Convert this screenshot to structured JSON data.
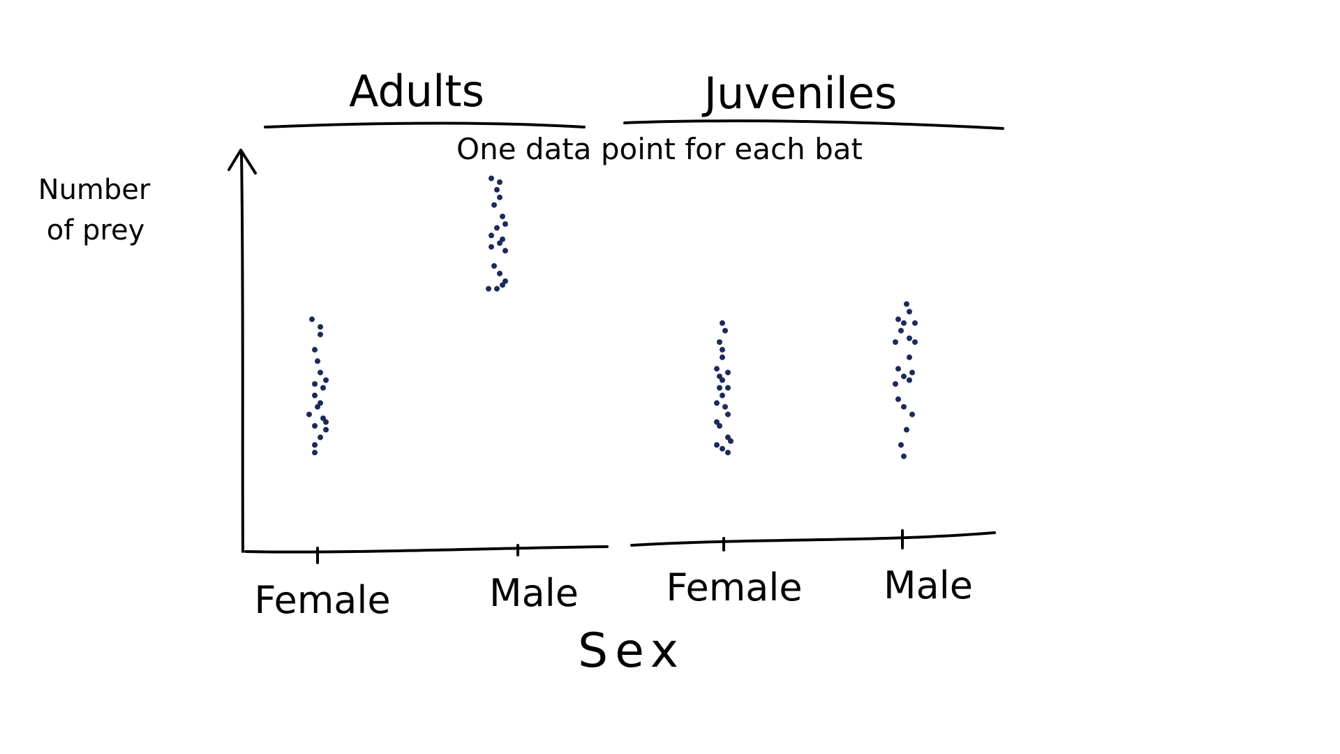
{
  "chart_data": {
    "type": "scatter",
    "style": "hand-drawn strip plot",
    "ylabel_lines": [
      "Number",
      "of prey"
    ],
    "xlabel": "Sex",
    "annotation": "One data point for each bat",
    "panels": [
      {
        "name": "Adults",
        "categories": [
          "Female",
          "Male"
        ],
        "series": [
          {
            "category": "Female",
            "points": [
              [
                -0.02,
                61
              ],
              [
                0.01,
                59
              ],
              [
                0.01,
                57
              ],
              [
                -0.01,
                53
              ],
              [
                0,
                50
              ],
              [
                0.01,
                47
              ],
              [
                0.03,
                45
              ],
              [
                -0.01,
                44
              ],
              [
                0.02,
                43
              ],
              [
                -0.01,
                41
              ],
              [
                0.01,
                39
              ],
              [
                0,
                38
              ],
              [
                -0.03,
                36
              ],
              [
                0.02,
                35
              ],
              [
                0.03,
                34
              ],
              [
                -0.01,
                33
              ],
              [
                0.03,
                32
              ],
              [
                0.01,
                30
              ],
              [
                -0.01,
                28
              ],
              [
                -0.01,
                26
              ]
            ]
          },
          {
            "category": "Male",
            "points": [
              [
                -0.02,
                98
              ],
              [
                0.01,
                97
              ],
              [
                0,
                95
              ],
              [
                0.01,
                93
              ],
              [
                -0.01,
                91
              ],
              [
                0.02,
                88
              ],
              [
                0.03,
                86
              ],
              [
                0,
                85
              ],
              [
                -0.02,
                83
              ],
              [
                0.02,
                82
              ],
              [
                0.01,
                81
              ],
              [
                -0.02,
                80
              ],
              [
                0.03,
                79
              ],
              [
                -0.01,
                75
              ],
              [
                0.01,
                73
              ],
              [
                0.03,
                71
              ],
              [
                0.02,
                70
              ],
              [
                -0.03,
                69
              ],
              [
                0,
                69
              ]
            ]
          }
        ]
      },
      {
        "name": "Juveniles",
        "categories": [
          "Female",
          "Male"
        ],
        "series": [
          {
            "category": "Female",
            "points": [
              [
                0,
                60
              ],
              [
                0.01,
                58
              ],
              [
                -0.01,
                55
              ],
              [
                0,
                53
              ],
              [
                0,
                51
              ],
              [
                -0.02,
                48
              ],
              [
                0.02,
                47
              ],
              [
                -0.01,
                46
              ],
              [
                0,
                45
              ],
              [
                0.02,
                43
              ],
              [
                -0.01,
                43
              ],
              [
                0,
                41
              ],
              [
                -0.02,
                39
              ],
              [
                0.01,
                38
              ],
              [
                0.02,
                36
              ],
              [
                -0.02,
                34
              ],
              [
                -0.01,
                33
              ],
              [
                0.02,
                30
              ],
              [
                0.03,
                29
              ],
              [
                -0.02,
                28
              ],
              [
                0,
                27
              ],
              [
                0.02,
                26
              ]
            ]
          },
          {
            "category": "Male",
            "points": [
              [
                0.01,
                65
              ],
              [
                0.02,
                63
              ],
              [
                -0.02,
                61
              ],
              [
                0,
                60
              ],
              [
                0.04,
                60
              ],
              [
                -0.01,
                58
              ],
              [
                0.02,
                56
              ],
              [
                -0.03,
                55
              ],
              [
                0.04,
                55
              ],
              [
                0.02,
                51
              ],
              [
                -0.02,
                48
              ],
              [
                0.03,
                47
              ],
              [
                0,
                46
              ],
              [
                0.02,
                45
              ],
              [
                -0.03,
                44
              ],
              [
                -0.02,
                40
              ],
              [
                0,
                38
              ],
              [
                0.03,
                36
              ],
              [
                0.01,
                32
              ],
              [
                -0.01,
                28
              ],
              [
                0,
                25
              ]
            ]
          }
        ]
      }
    ],
    "ylim": [
      0,
      110
    ],
    "grid": false,
    "legend": false
  },
  "style": {
    "dot_color": "#1c2a5a",
    "ink_color": "#000000"
  }
}
